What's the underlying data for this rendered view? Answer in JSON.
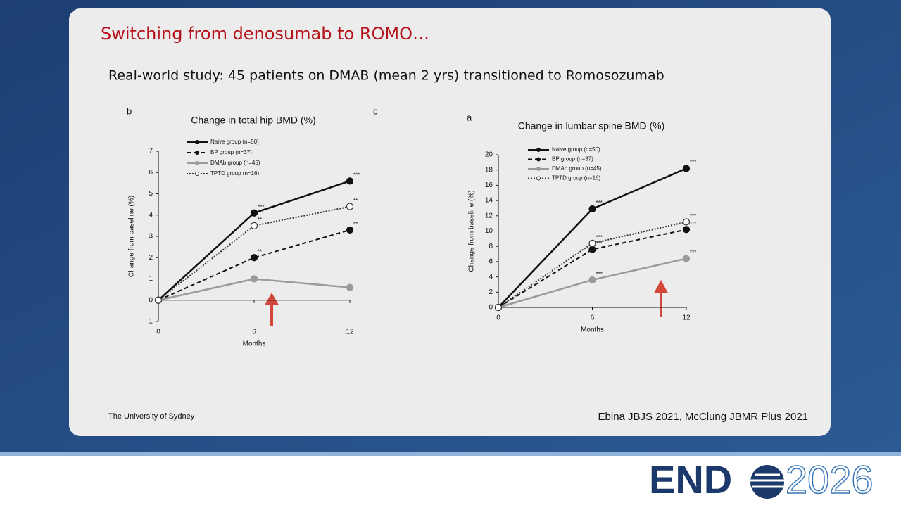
{
  "slide": {
    "title": "Switching from denosumab to ROMO…",
    "subtitle": "Real-world study:  45 patients on DMAB (mean 2 yrs) transitioned to Romosozumab",
    "footer_left": "The University of Sydney",
    "footer_right": "Ebina JBJS 2021, McClung JBMR Plus 2021",
    "extra_panel_label": "c"
  },
  "logo": {
    "name": "END",
    "year": "2026"
  },
  "chart_data": [
    {
      "type": "line",
      "panel": "b",
      "title": "Change in total hip BMD (%)",
      "x_label": "Months",
      "y_label": "Change from baseline (%)",
      "x": [
        0,
        6,
        12
      ],
      "xlim": [
        0,
        12
      ],
      "xticks": [
        0,
        6,
        12
      ],
      "ylim": [
        -1,
        7
      ],
      "yticks": [
        -1,
        0,
        1,
        2,
        3,
        4,
        5,
        6,
        7
      ],
      "legend": "upper left",
      "series": [
        {
          "name": "Naive group (n=50)",
          "color": "#111111",
          "style": "solid",
          "marker": "filled",
          "values": [
            0,
            4.1,
            5.6
          ],
          "significance": [
            null,
            "***",
            "***"
          ]
        },
        {
          "name": "BP group (n=37)",
          "color": "#111111",
          "style": "dashed",
          "marker": "filled",
          "values": [
            0,
            2.0,
            3.3
          ],
          "significance": [
            null,
            "**",
            "**"
          ]
        },
        {
          "name": "DMAb group (n=45)",
          "color": "#9a9a9a",
          "style": "solid",
          "marker": "filled",
          "values": [
            0,
            1.0,
            0.6
          ],
          "significance": [
            null,
            null,
            null
          ]
        },
        {
          "name": "TPTD group (n=16)",
          "color": "#333333",
          "style": "dotted",
          "marker": "open",
          "values": [
            0,
            3.5,
            4.4
          ],
          "significance": [
            null,
            "**",
            "**"
          ]
        }
      ]
    },
    {
      "type": "line",
      "panel": "a",
      "title": "Change in lumbar spine BMD (%)",
      "x_label": "Months",
      "y_label": "Change from baseline (%)",
      "x": [
        0,
        6,
        12
      ],
      "xlim": [
        0,
        12
      ],
      "xticks": [
        0,
        6,
        12
      ],
      "ylim": [
        0,
        20
      ],
      "yticks": [
        0,
        2,
        4,
        6,
        8,
        10,
        12,
        14,
        16,
        18,
        20
      ],
      "legend": "upper left",
      "series": [
        {
          "name": "Naive group (n=50)",
          "color": "#111111",
          "style": "solid",
          "marker": "filled",
          "values": [
            0,
            12.9,
            18.2
          ],
          "significance": [
            null,
            "***",
            "***"
          ]
        },
        {
          "name": "BP group (n=37)",
          "color": "#111111",
          "style": "dashed",
          "marker": "filled",
          "values": [
            0,
            7.6,
            10.2
          ],
          "significance": [
            null,
            "***",
            "***"
          ]
        },
        {
          "name": "DMAb group (n=45)",
          "color": "#9a9a9a",
          "style": "solid",
          "marker": "filled",
          "values": [
            0,
            3.6,
            6.4
          ],
          "significance": [
            null,
            "***",
            "***"
          ]
        },
        {
          "name": "TPTD group (n=16)",
          "color": "#333333",
          "style": "dotted",
          "marker": "open",
          "values": [
            0,
            8.4,
            11.2
          ],
          "significance": [
            null,
            "***",
            "***"
          ]
        }
      ]
    }
  ]
}
